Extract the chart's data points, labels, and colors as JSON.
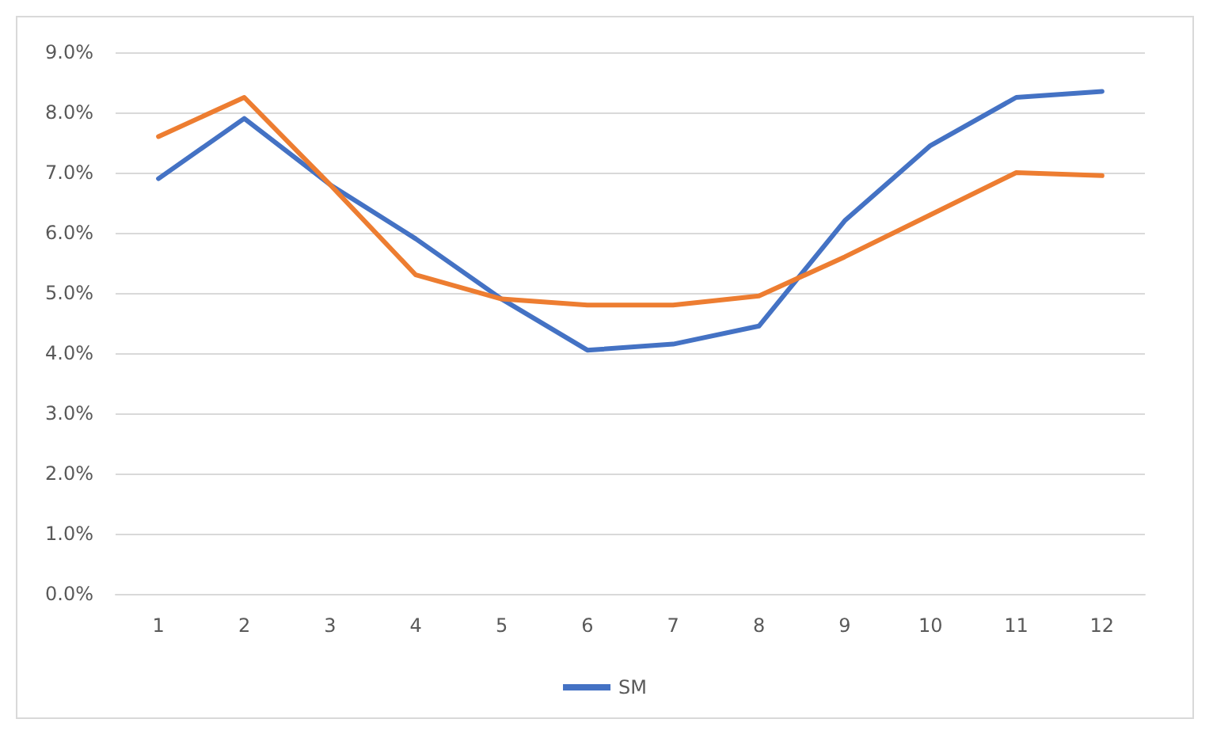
{
  "chart_data": {
    "type": "line",
    "x": [
      1,
      2,
      3,
      4,
      5,
      6,
      7,
      8,
      9,
      10,
      11,
      12
    ],
    "xlim": [
      0.5,
      12.5
    ],
    "xticks": [
      1,
      2,
      3,
      4,
      5,
      6,
      7,
      8,
      9,
      10,
      11,
      12
    ],
    "series": [
      {
        "name": "SM",
        "color": "#4472c4",
        "values": [
          6.9,
          7.9,
          6.8,
          5.9,
          4.9,
          4.05,
          4.15,
          4.45,
          6.2,
          7.45,
          8.25,
          8.35
        ]
      },
      {
        "color": "#ed7d31",
        "values": [
          7.6,
          8.25,
          6.8,
          5.3,
          4.9,
          4.8,
          4.8,
          4.95,
          5.6,
          6.3,
          7.0,
          6.95
        ]
      }
    ],
    "ylim": [
      0,
      9
    ],
    "yticks": [
      {
        "value": 0,
        "label": "0.0%"
      },
      {
        "value": 1,
        "label": "1.0%"
      },
      {
        "value": 2,
        "label": "2.0%"
      },
      {
        "value": 3,
        "label": "3.0%"
      },
      {
        "value": 4,
        "label": "4.0%"
      },
      {
        "value": 5,
        "label": "5.0%"
      },
      {
        "value": 6,
        "label": "6.0%"
      },
      {
        "value": 7,
        "label": "7.0%"
      },
      {
        "value": 8,
        "label": "8.0%"
      },
      {
        "value": 9,
        "label": "9.0%"
      }
    ],
    "grid": "y",
    "legend": "bottom",
    "marker": "none",
    "line_style": "solid"
  }
}
